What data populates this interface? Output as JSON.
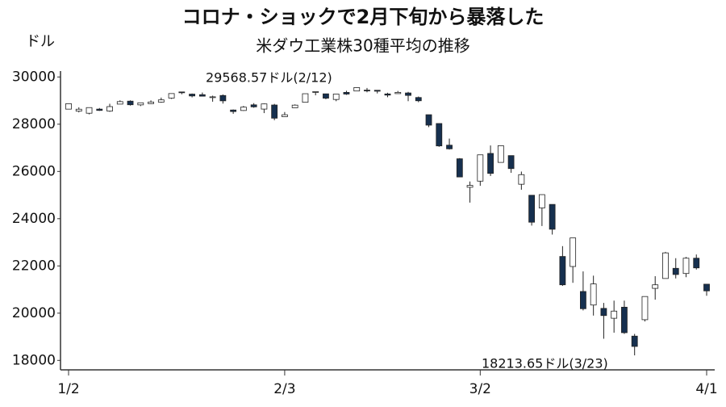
{
  "chart_data": {
    "type": "candlestick",
    "title": "コロナ・ショックで2月下旬から暴落した",
    "subtitle": "米ダウ工業株30種平均の推移",
    "y_label": "ドル",
    "annotations": [
      "29568.57ドル(2/12)",
      "18213.65ドル(3/23)"
    ],
    "up_color": "#ffffff",
    "down_color": "#16304f",
    "categories": [
      "1/2",
      null,
      null,
      null,
      null,
      null,
      null,
      null,
      null,
      null,
      null,
      null,
      null,
      null,
      null,
      null,
      null,
      null,
      null,
      null,
      null,
      "2/3",
      null,
      null,
      null,
      null,
      null,
      null,
      null,
      null,
      null,
      null,
      null,
      null,
      null,
      null,
      null,
      null,
      null,
      null,
      "3/2",
      null,
      null,
      null,
      null,
      null,
      null,
      null,
      null,
      null,
      null,
      null,
      null,
      null,
      null,
      null,
      null,
      null,
      null,
      null,
      null,
      null,
      "4/1"
    ],
    "open": [
      28638,
      28553,
      28465,
      28639,
      28556,
      28851,
      28977,
      28819,
      28871,
      28934,
      29106,
      29366,
      29274,
      29250,
      29134,
      29216,
      28601,
      28580,
      28820,
      28640,
      28813,
      28319,
      28696,
      28929,
      29357,
      29286,
      29047,
      29347,
      29406,
      29442,
      29437,
      29282,
      29295,
      29323,
      29130,
      28402,
      28029,
      27112,
      26536,
      25330,
      25590,
      26763,
      26383,
      26671,
      25458,
      24992,
      24454,
      24604,
      22400,
      21976,
      20918,
      20345,
      20202,
      19784,
      20253,
      19028,
      19723,
      21050,
      21468,
      21898,
      21679,
      22327,
      21227
    ],
    "high": [
      28872,
      28716,
      28708,
      28685,
      28866,
      29010,
      29010,
      28908,
      29009,
      29127,
      29298,
      29373,
      29299,
      29341,
      29209,
      29258,
      28624,
      28772,
      28892,
      28876,
      28861,
      28516,
      28839,
      29290,
      29380,
      29286,
      29277,
      29416,
      29568.57,
      29535,
      29446,
      29330,
      29409,
      29370,
      29172,
      28402,
      28033,
      27392,
      26565,
      25575,
      26706,
      27101,
      27091,
      26671,
      25995,
      24992,
      25020,
      24604,
      22838,
      23186,
      21768,
      21588,
      20434,
      20531,
      20531,
      19121,
      20705,
      21565,
      22595,
      22327,
      22378,
      22484,
      21227
    ],
    "low": [
      28627,
      28500,
      28418,
      28565,
      28522,
      28851,
      28789,
      28767,
      28859,
      28908,
      29071,
      29267,
      29136,
      29174,
      28953,
      28873,
      28440,
      28562,
      28696,
      28470,
      28169,
      28319,
      28696,
      28929,
      29223,
      29056,
      28974,
      29241,
      29406,
      29351,
      29303,
      29145,
      29295,
      28975,
      28932,
      27877,
      27042,
      26927,
      25762,
      24681,
      25391,
      25807,
      26384,
      25943,
      25226,
      23707,
      23690,
      23328,
      21154,
      21285,
      20116,
      19898,
      18917,
      19174,
      19122,
      18213.65,
      19649,
      20573,
      21468,
      21470,
      21523,
      21847,
      20735
    ],
    "close": [
      28868.8,
      28634.9,
      28703.4,
      28583.7,
      28745.1,
      28956.9,
      28823.8,
      28907.1,
      28939.7,
      29030.2,
      29297.6,
      29348.1,
      29196.0,
      29186.3,
      29160.1,
      28989.7,
      28535.8,
      28722.9,
      28734.5,
      28859.4,
      28256.0,
      28399.8,
      28807.6,
      29290.9,
      29379.8,
      29102.5,
      29276.8,
      29276.3,
      29551.4,
      29423.3,
      29398.1,
      29232.2,
      29348.0,
      29219.9,
      28992.4,
      27960.8,
      27081.4,
      26957.6,
      25766.6,
      25409.4,
      26703.3,
      25917.4,
      27090.9,
      26121.3,
      25864.8,
      23851.0,
      25018.2,
      23553.2,
      21200.6,
      23185.6,
      20188.5,
      21237.4,
      19898.9,
      20087.2,
      19174.0,
      18591.9,
      20704.9,
      21200.6,
      22552.2,
      21636.8,
      22327.5,
      21917.2,
      20943.5
    ],
    "ylim": [
      17600,
      30250
    ],
    "yticks": [
      18000,
      20000,
      22000,
      24000,
      26000,
      28000,
      30000
    ]
  }
}
